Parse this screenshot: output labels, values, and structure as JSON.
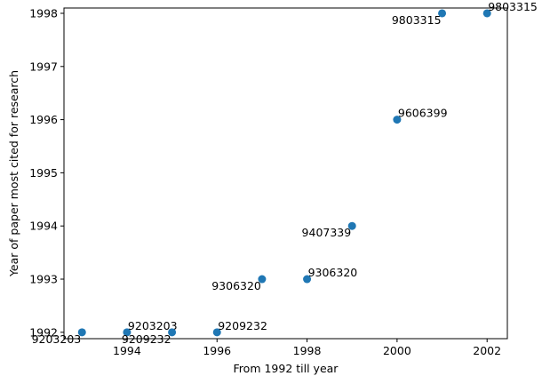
{
  "chart_data": {
    "type": "scatter",
    "title": "",
    "xlabel": "From 1992 till year",
    "ylabel": "Year of paper most cited for research",
    "xlim": [
      1992.6,
      2002.45
    ],
    "ylim": [
      1991.88,
      1998.1
    ],
    "xticks": [
      1994,
      1996,
      1998,
      2000,
      2002
    ],
    "yticks": [
      1992,
      1993,
      1994,
      1995,
      1996,
      1997,
      1998
    ],
    "grid": false,
    "marker_color": "#1f77b4",
    "points": [
      {
        "x": 1993,
        "y": 1992,
        "label": "9203203",
        "label_pos": "below-left"
      },
      {
        "x": 1994,
        "y": 1992,
        "label": "9203203",
        "label_pos": "above-right"
      },
      {
        "x": 1995,
        "y": 1992,
        "label": "9209232",
        "label_pos": "below-left"
      },
      {
        "x": 1996,
        "y": 1992,
        "label": "9209232",
        "label_pos": "above-right"
      },
      {
        "x": 1997,
        "y": 1993,
        "label": "9306320",
        "label_pos": "below-left"
      },
      {
        "x": 1998,
        "y": 1993,
        "label": "9306320",
        "label_pos": "above-right"
      },
      {
        "x": 1999,
        "y": 1994,
        "label": "9407339",
        "label_pos": "below-left"
      },
      {
        "x": 2000,
        "y": 1996,
        "label": "9606399",
        "label_pos": "above-right"
      },
      {
        "x": 2001,
        "y": 1998,
        "label": "9803315",
        "label_pos": "below-left"
      },
      {
        "x": 2002,
        "y": 1998,
        "label": "9803315",
        "label_pos": "above-right"
      }
    ]
  }
}
